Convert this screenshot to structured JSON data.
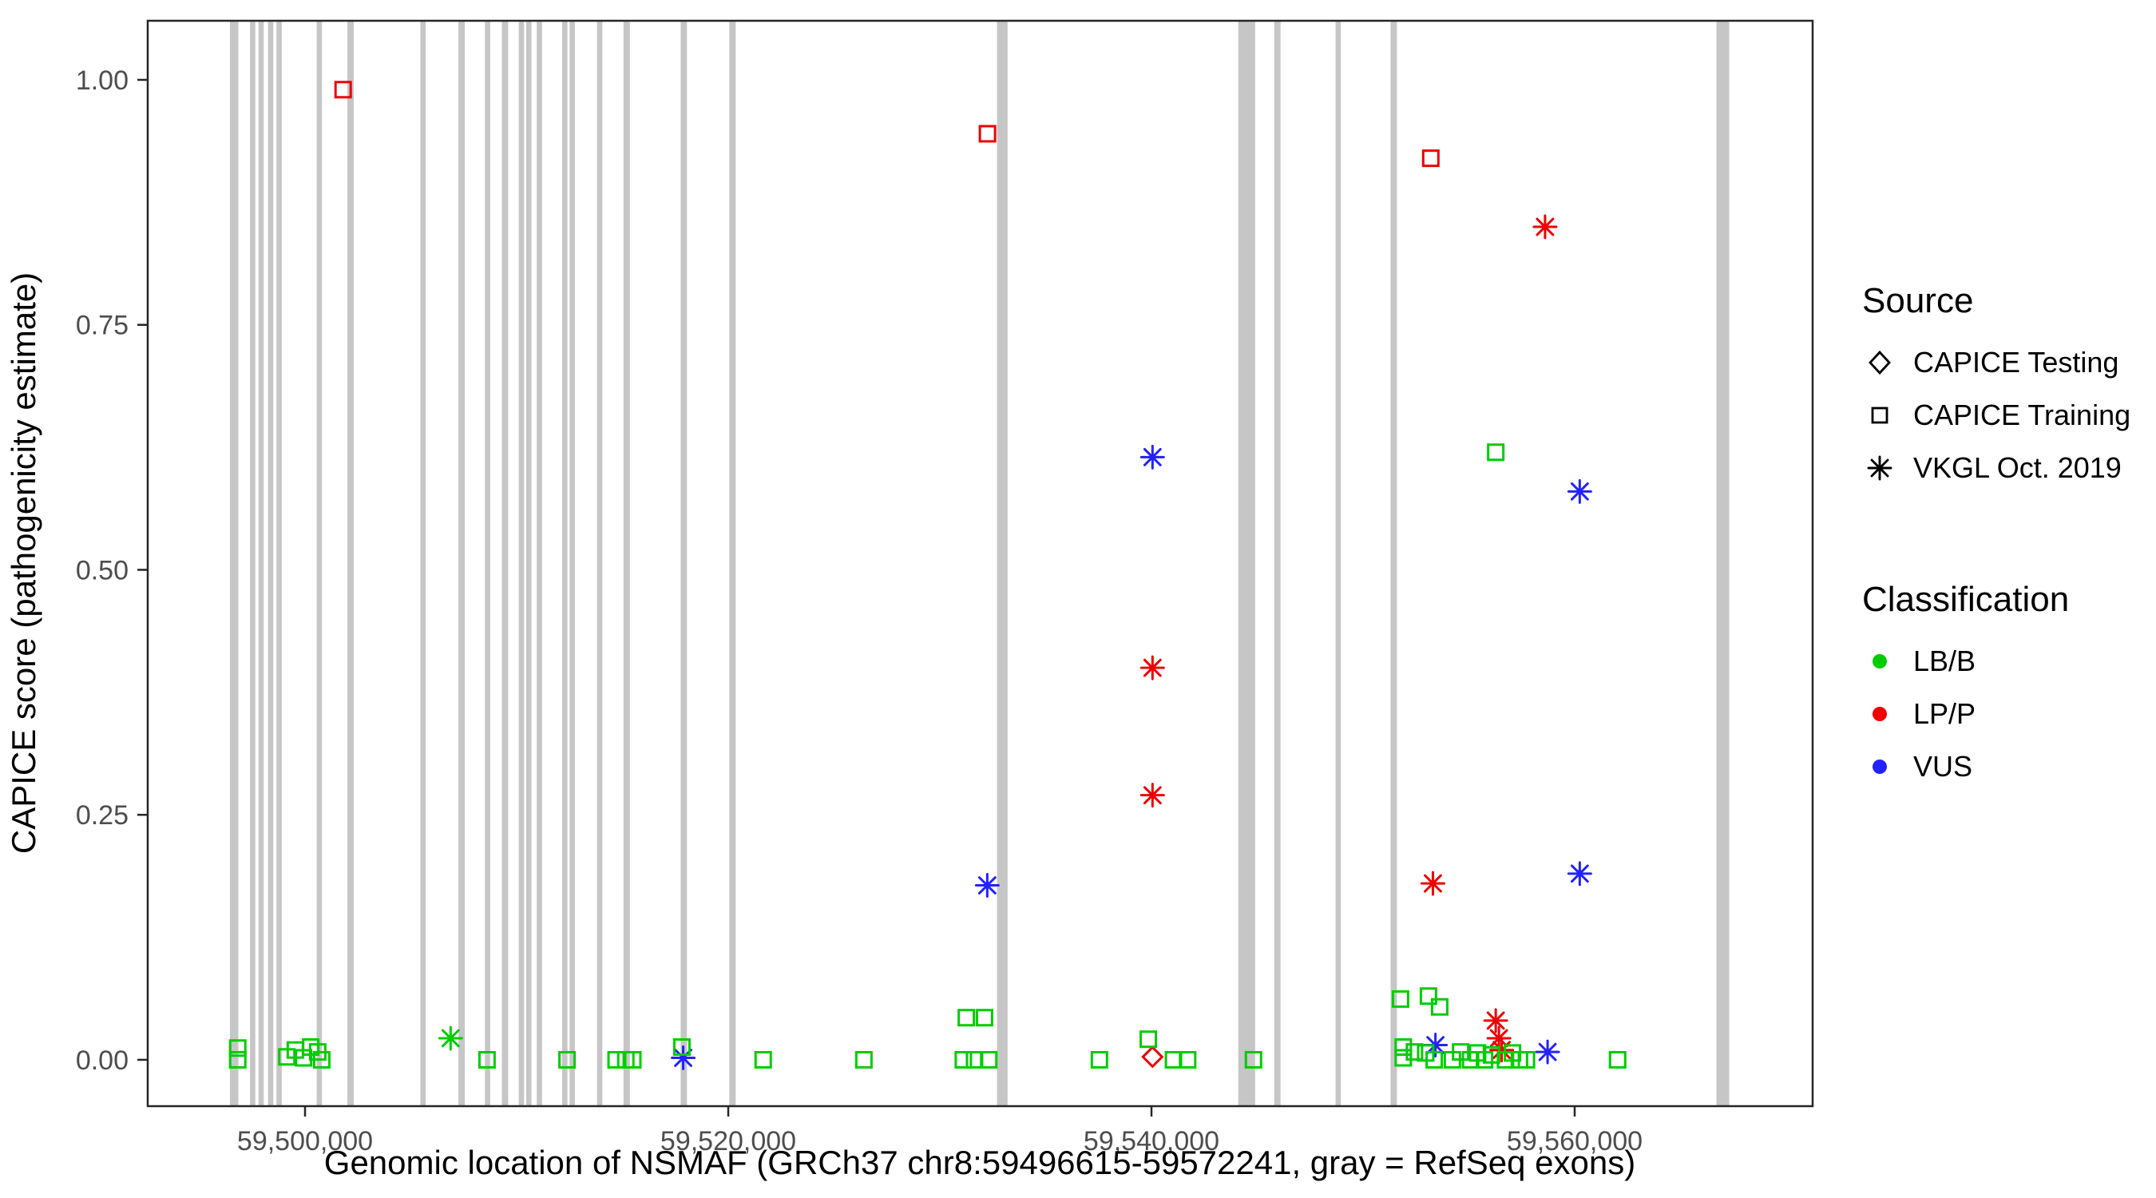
{
  "chart_data": {
    "type": "scatter",
    "xlabel": "Genomic location of NSMAF (GRCh37 chr8:59496615-59572241, gray = RefSeq exons)",
    "ylabel": "CAPICE score (pathogenicity estimate)",
    "x_domain": [
      59492566,
      59571245
    ],
    "y_domain": [
      -0.0473,
      1.0603
    ],
    "x_ticks": [
      {
        "value": 59500000,
        "label": "59,500,000"
      },
      {
        "value": 59520000,
        "label": "59,520,000"
      },
      {
        "value": 59540000,
        "label": "59,540,000"
      },
      {
        "value": 59560000,
        "label": "59,560,000"
      }
    ],
    "y_ticks": [
      {
        "value": 0.0,
        "label": "0.00"
      },
      {
        "value": 0.25,
        "label": "0.25"
      },
      {
        "value": 0.5,
        "label": "0.50"
      },
      {
        "value": 0.75,
        "label": "0.75"
      },
      {
        "value": 1.0,
        "label": "1.00"
      }
    ],
    "exon_color": "#c6c6c6",
    "exons": [
      [
        59496450,
        59496850
      ],
      [
        59497400,
        59497650
      ],
      [
        59497800,
        59498050
      ],
      [
        59498250,
        59498500
      ],
      [
        59498650,
        59498900
      ],
      [
        59500550,
        59500800
      ],
      [
        59502000,
        59502300
      ],
      [
        59505450,
        59505700
      ],
      [
        59507250,
        59507550
      ],
      [
        59508500,
        59508750
      ],
      [
        59509300,
        59509600
      ],
      [
        59510100,
        59510350
      ],
      [
        59510450,
        59510700
      ],
      [
        59510950,
        59511200
      ],
      [
        59512150,
        59512400
      ],
      [
        59512500,
        59512750
      ],
      [
        59513800,
        59514050
      ],
      [
        59515050,
        59515350
      ],
      [
        59517750,
        59518050
      ],
      [
        59520050,
        59520350
      ],
      [
        59532700,
        59533200
      ],
      [
        59544100,
        59544900
      ],
      [
        59545800,
        59546100
      ],
      [
        59548700,
        59548950
      ],
      [
        59551300,
        59551600
      ],
      [
        59566700,
        59567300
      ]
    ],
    "classification_colors": {
      "LB/B": "#00cd00",
      "LP/P": "#ee0000",
      "VUS": "#2222ff"
    },
    "source_shapes": {
      "CAPICE Testing": "diamond",
      "CAPICE Training": "square",
      "VKGL Oct. 2019": "asterisk"
    },
    "points_format": [
      "x",
      "y",
      "source",
      "classification"
    ],
    "points": [
      [
        59501800,
        0.99,
        "CAPICE Training",
        "LP/P"
      ],
      [
        59532250,
        0.945,
        "CAPICE Training",
        "LP/P"
      ],
      [
        59553200,
        0.92,
        "CAPICE Training",
        "LP/P"
      ],
      [
        59556270,
        0.62,
        "CAPICE Training",
        "LB/B"
      ],
      [
        59558600,
        0.85,
        "VKGL Oct. 2019",
        "LP/P"
      ],
      [
        59540050,
        0.4,
        "VKGL Oct. 2019",
        "LP/P"
      ],
      [
        59540050,
        0.27,
        "VKGL Oct. 2019",
        "LP/P"
      ],
      [
        59553300,
        0.18,
        "VKGL Oct. 2019",
        "LP/P"
      ],
      [
        59556270,
        0.04,
        "VKGL Oct. 2019",
        "LP/P"
      ],
      [
        59556420,
        0.022,
        "VKGL Oct. 2019",
        "LP/P"
      ],
      [
        59556550,
        0.01,
        "VKGL Oct. 2019",
        "LP/P"
      ],
      [
        59540050,
        0.615,
        "VKGL Oct. 2019",
        "VUS"
      ],
      [
        59560240,
        0.58,
        "VKGL Oct. 2019",
        "VUS"
      ],
      [
        59560240,
        0.19,
        "VKGL Oct. 2019",
        "VUS"
      ],
      [
        59532240,
        0.178,
        "VKGL Oct. 2019",
        "VUS"
      ],
      [
        59517870,
        0.002,
        "VKGL Oct. 2019",
        "VUS"
      ],
      [
        59553420,
        0.015,
        "VKGL Oct. 2019",
        "VUS"
      ],
      [
        59558720,
        0.008,
        "VKGL Oct. 2019",
        "VUS"
      ],
      [
        59506880,
        0.022,
        "VKGL Oct. 2019",
        "LB/B"
      ],
      [
        59540050,
        0.003,
        "CAPICE Testing",
        "LP/P"
      ],
      [
        59496820,
        0.012,
        "CAPICE Training",
        "LB/B"
      ],
      [
        59496820,
        0.0,
        "CAPICE Training",
        "LB/B"
      ],
      [
        59499140,
        0.003,
        "CAPICE Training",
        "LB/B"
      ],
      [
        59499540,
        0.01,
        "CAPICE Training",
        "LB/B"
      ],
      [
        59499930,
        0.002,
        "CAPICE Training",
        "LB/B"
      ],
      [
        59500270,
        0.013,
        "CAPICE Training",
        "LB/B"
      ],
      [
        59500600,
        0.008,
        "CAPICE Training",
        "LB/B"
      ],
      [
        59500790,
        0.0,
        "CAPICE Training",
        "LB/B"
      ],
      [
        59508600,
        0.0,
        "CAPICE Training",
        "LB/B"
      ],
      [
        59512380,
        0.0,
        "CAPICE Training",
        "LB/B"
      ],
      [
        59514700,
        0.0,
        "CAPICE Training",
        "LB/B"
      ],
      [
        59515160,
        0.0,
        "CAPICE Training",
        "LB/B"
      ],
      [
        59515490,
        0.0,
        "CAPICE Training",
        "LB/B"
      ],
      [
        59517810,
        0.013,
        "CAPICE Training",
        "LB/B"
      ],
      [
        59521650,
        0.0,
        "CAPICE Training",
        "LB/B"
      ],
      [
        59526410,
        0.0,
        "CAPICE Training",
        "LB/B"
      ],
      [
        59531250,
        0.043,
        "CAPICE Training",
        "LB/B"
      ],
      [
        59532110,
        0.043,
        "CAPICE Training",
        "LB/B"
      ],
      [
        59531110,
        0.0,
        "CAPICE Training",
        "LB/B"
      ],
      [
        59531640,
        0.0,
        "CAPICE Training",
        "LB/B"
      ],
      [
        59532310,
        0.0,
        "CAPICE Training",
        "LB/B"
      ],
      [
        59537540,
        0.0,
        "CAPICE Training",
        "LB/B"
      ],
      [
        59539850,
        0.021,
        "CAPICE Training",
        "LB/B"
      ],
      [
        59541040,
        0.0,
        "CAPICE Training",
        "LB/B"
      ],
      [
        59541710,
        0.0,
        "CAPICE Training",
        "LB/B"
      ],
      [
        59544820,
        0.0,
        "CAPICE Training",
        "LB/B"
      ],
      [
        59551770,
        0.062,
        "CAPICE Training",
        "LB/B"
      ],
      [
        59553090,
        0.065,
        "CAPICE Training",
        "LB/B"
      ],
      [
        59553620,
        0.054,
        "CAPICE Training",
        "LB/B"
      ],
      [
        59551900,
        0.013,
        "CAPICE Training",
        "LB/B"
      ],
      [
        59551900,
        0.002,
        "CAPICE Training",
        "LB/B"
      ],
      [
        59552430,
        0.008,
        "CAPICE Training",
        "LB/B"
      ],
      [
        59552960,
        0.007,
        "CAPICE Training",
        "LB/B"
      ],
      [
        59553360,
        0.0,
        "CAPICE Training",
        "LB/B"
      ],
      [
        59554220,
        0.0,
        "CAPICE Training",
        "LB/B"
      ],
      [
        59554610,
        0.008,
        "CAPICE Training",
        "LB/B"
      ],
      [
        59555080,
        0.0,
        "CAPICE Training",
        "LB/B"
      ],
      [
        59555410,
        0.007,
        "CAPICE Training",
        "LB/B"
      ],
      [
        59555740,
        0.0,
        "CAPICE Training",
        "LB/B"
      ],
      [
        59556070,
        0.005,
        "CAPICE Training",
        "LB/B"
      ],
      [
        59556730,
        0.0,
        "CAPICE Training",
        "LB/B"
      ],
      [
        59557060,
        0.007,
        "CAPICE Training",
        "LB/B"
      ],
      [
        59557390,
        0.0,
        "CAPICE Training",
        "LB/B"
      ],
      [
        59557720,
        0.0,
        "CAPICE Training",
        "LB/B"
      ],
      [
        59562030,
        0.0,
        "CAPICE Training",
        "LB/B"
      ]
    ]
  },
  "legend": {
    "source": {
      "title": "Source",
      "items": [
        {
          "label": "CAPICE Testing",
          "shape": "diamond"
        },
        {
          "label": "CAPICE Training",
          "shape": "square"
        },
        {
          "label": "VKGL Oct. 2019",
          "shape": "asterisk"
        }
      ]
    },
    "classification": {
      "title": "Classification",
      "items": [
        {
          "label": "LB/B",
          "color": "#00cd00"
        },
        {
          "label": "LP/P",
          "color": "#ee0000"
        },
        {
          "label": "VUS",
          "color": "#2222ff"
        }
      ]
    }
  }
}
